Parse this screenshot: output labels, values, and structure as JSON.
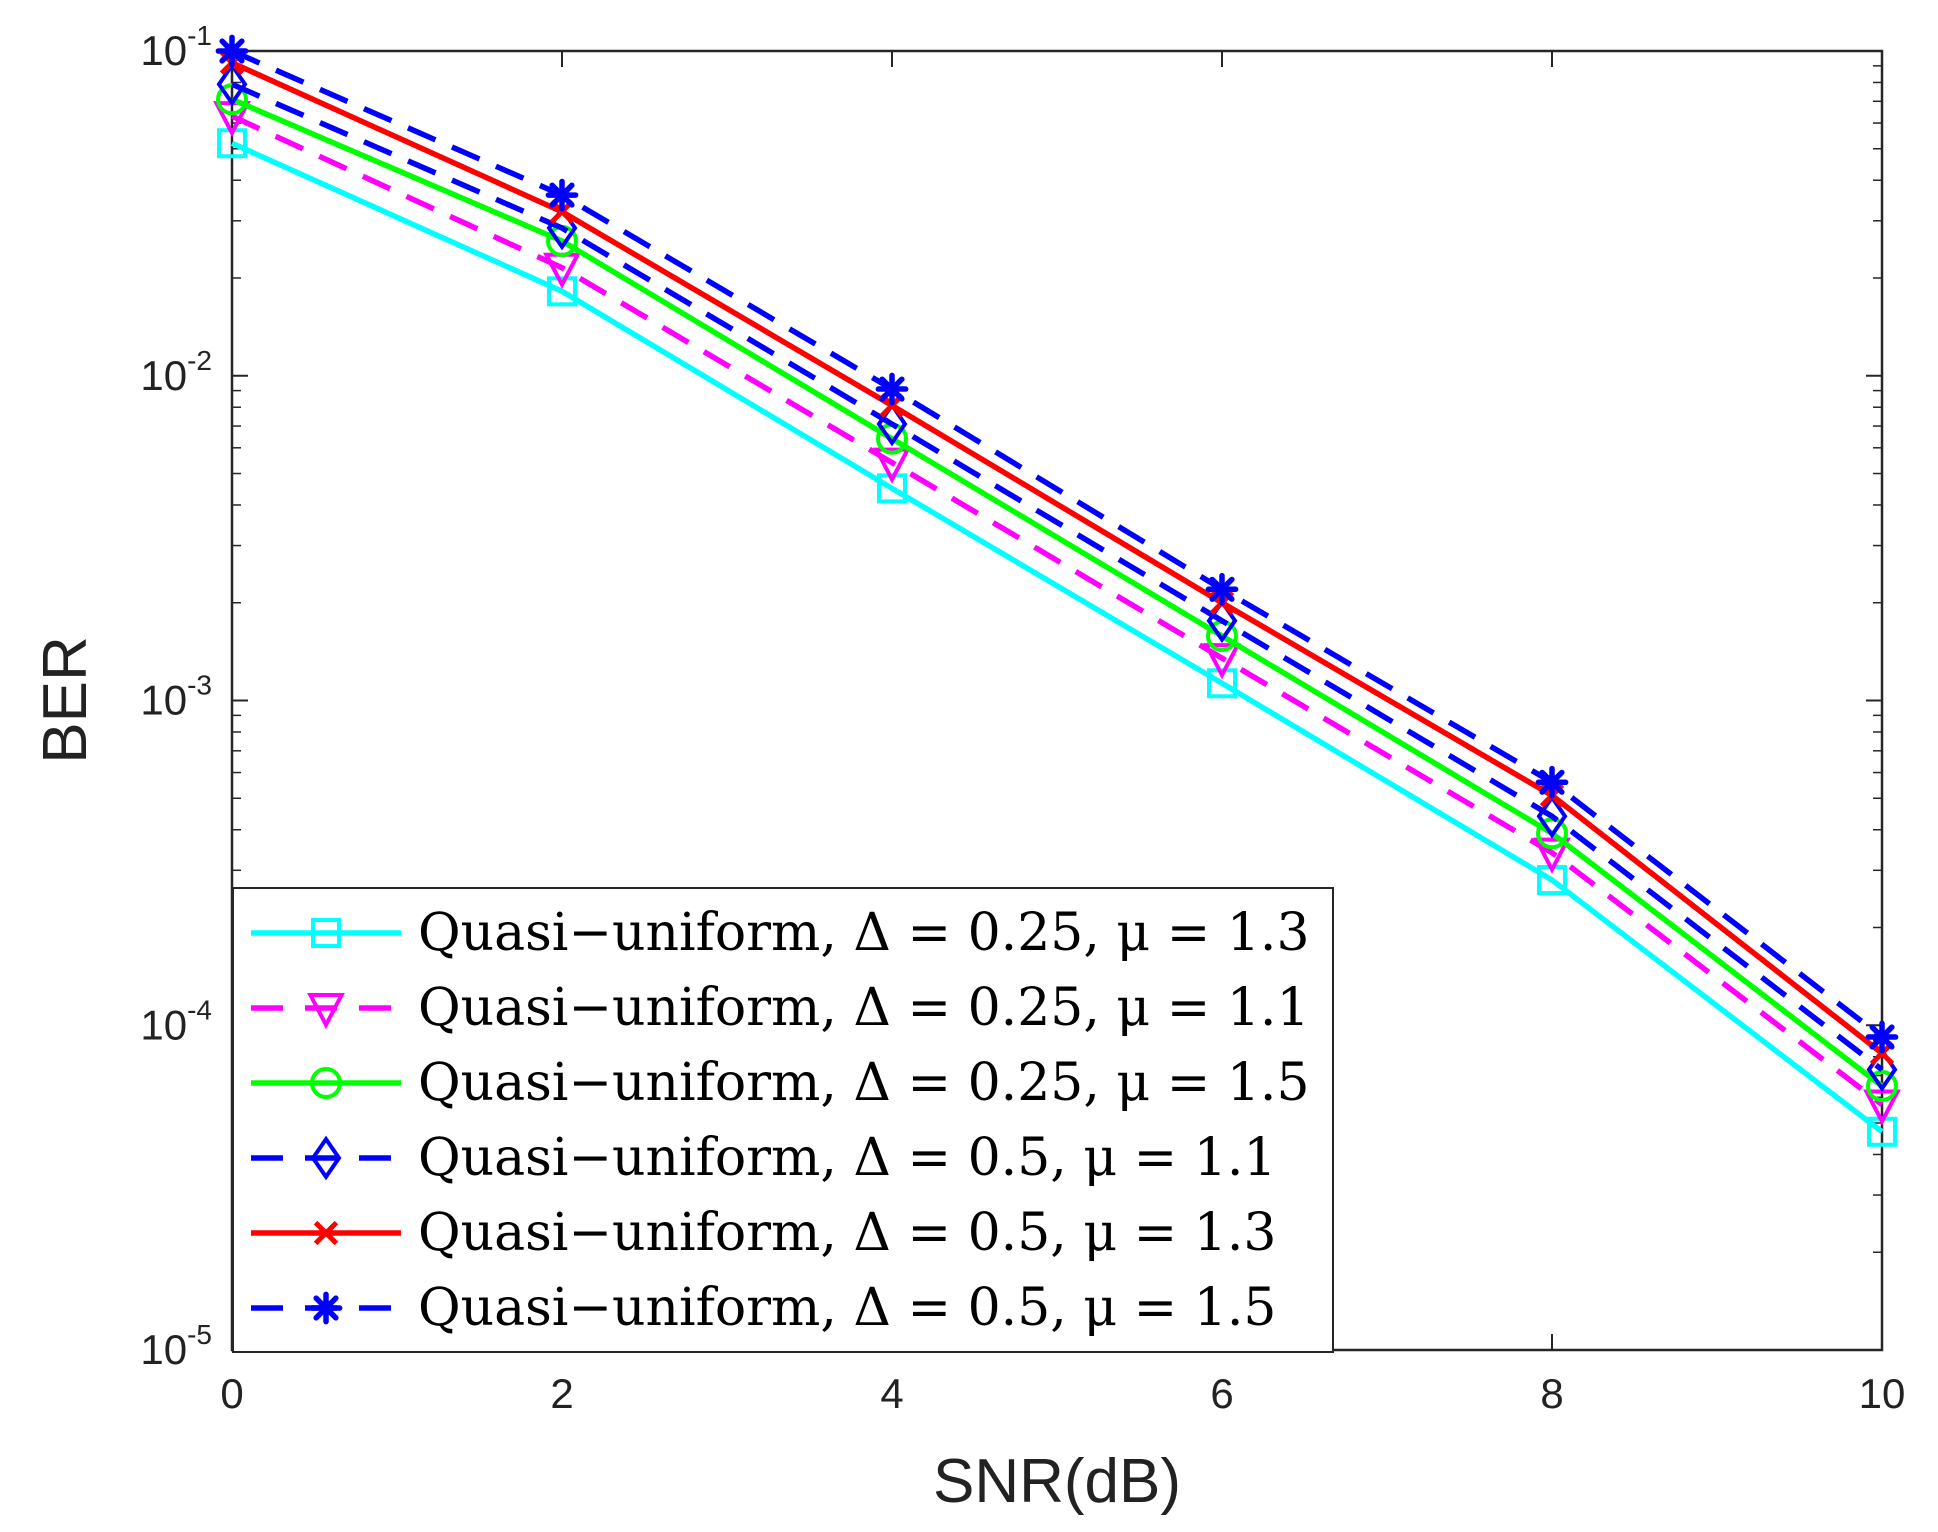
{
  "chart_data": {
    "type": "line",
    "xlabel": "SNR(dB)",
    "ylabel": "BER",
    "xscale": "linear",
    "yscale": "log",
    "xlim": [
      0,
      10
    ],
    "ylim": [
      1e-05,
      0.1
    ],
    "x_ticks": [
      {
        "value": 0,
        "label": "0"
      },
      {
        "value": 2,
        "label": "2"
      },
      {
        "value": 4,
        "label": "4"
      },
      {
        "value": 6,
        "label": "6"
      },
      {
        "value": 8,
        "label": "8"
      },
      {
        "value": 10,
        "label": "10"
      }
    ],
    "y_ticks": [
      {
        "value": 0.1,
        "base": "10",
        "exp": "-1"
      },
      {
        "value": 0.01,
        "base": "10",
        "exp": "-2"
      },
      {
        "value": 0.001,
        "base": "10",
        "exp": "-3"
      },
      {
        "value": 0.0001,
        "base": "10",
        "exp": "-4"
      },
      {
        "value": 1e-05,
        "base": "10",
        "exp": "-5"
      }
    ],
    "legend_position": "bottom-left",
    "grid": false,
    "x": [
      0,
      2,
      4,
      6,
      8,
      10
    ],
    "series": [
      {
        "name": "Quasi−uniform, Δ = 0.25, μ = 1.3",
        "color": "#00ffff",
        "dash": "solid",
        "marker": "square",
        "values": [
          0.052,
          0.0182,
          0.0045,
          0.00113,
          0.00028,
          4.7e-05
        ]
      },
      {
        "name": "Quasi−uniform, Δ = 0.25, μ = 1.1",
        "color": "#ff00ff",
        "dash": "dashed",
        "marker": "triangle-down",
        "values": [
          0.063,
          0.0215,
          0.0054,
          0.00135,
          0.00034,
          5.7e-05
        ]
      },
      {
        "name": "Quasi−uniform, Δ = 0.25, μ = 1.5",
        "color": "#00ff00",
        "dash": "solid",
        "marker": "circle",
        "values": [
          0.071,
          0.026,
          0.0064,
          0.00158,
          0.00039,
          6.5e-05
        ]
      },
      {
        "name": "Quasi−uniform, Δ = 0.5, μ = 1.1",
        "color": "#0000ff",
        "dash": "dashed",
        "marker": "diamond",
        "values": [
          0.079,
          0.0285,
          0.0071,
          0.00176,
          0.00044,
          7.3e-05
        ]
      },
      {
        "name": "Quasi−uniform, Δ = 0.5, μ = 1.3",
        "color": "#ff0000",
        "dash": "solid",
        "marker": "x",
        "values": [
          0.092,
          0.032,
          0.0081,
          0.002,
          0.00051,
          8.2e-05
        ]
      },
      {
        "name": "Quasi−uniform, Δ = 0.5, μ = 1.5",
        "color": "#0000ff",
        "dash": "dashed",
        "marker": "asterisk",
        "values": [
          0.1,
          0.036,
          0.0091,
          0.0022,
          0.00056,
          9.2e-05
        ]
      }
    ]
  }
}
